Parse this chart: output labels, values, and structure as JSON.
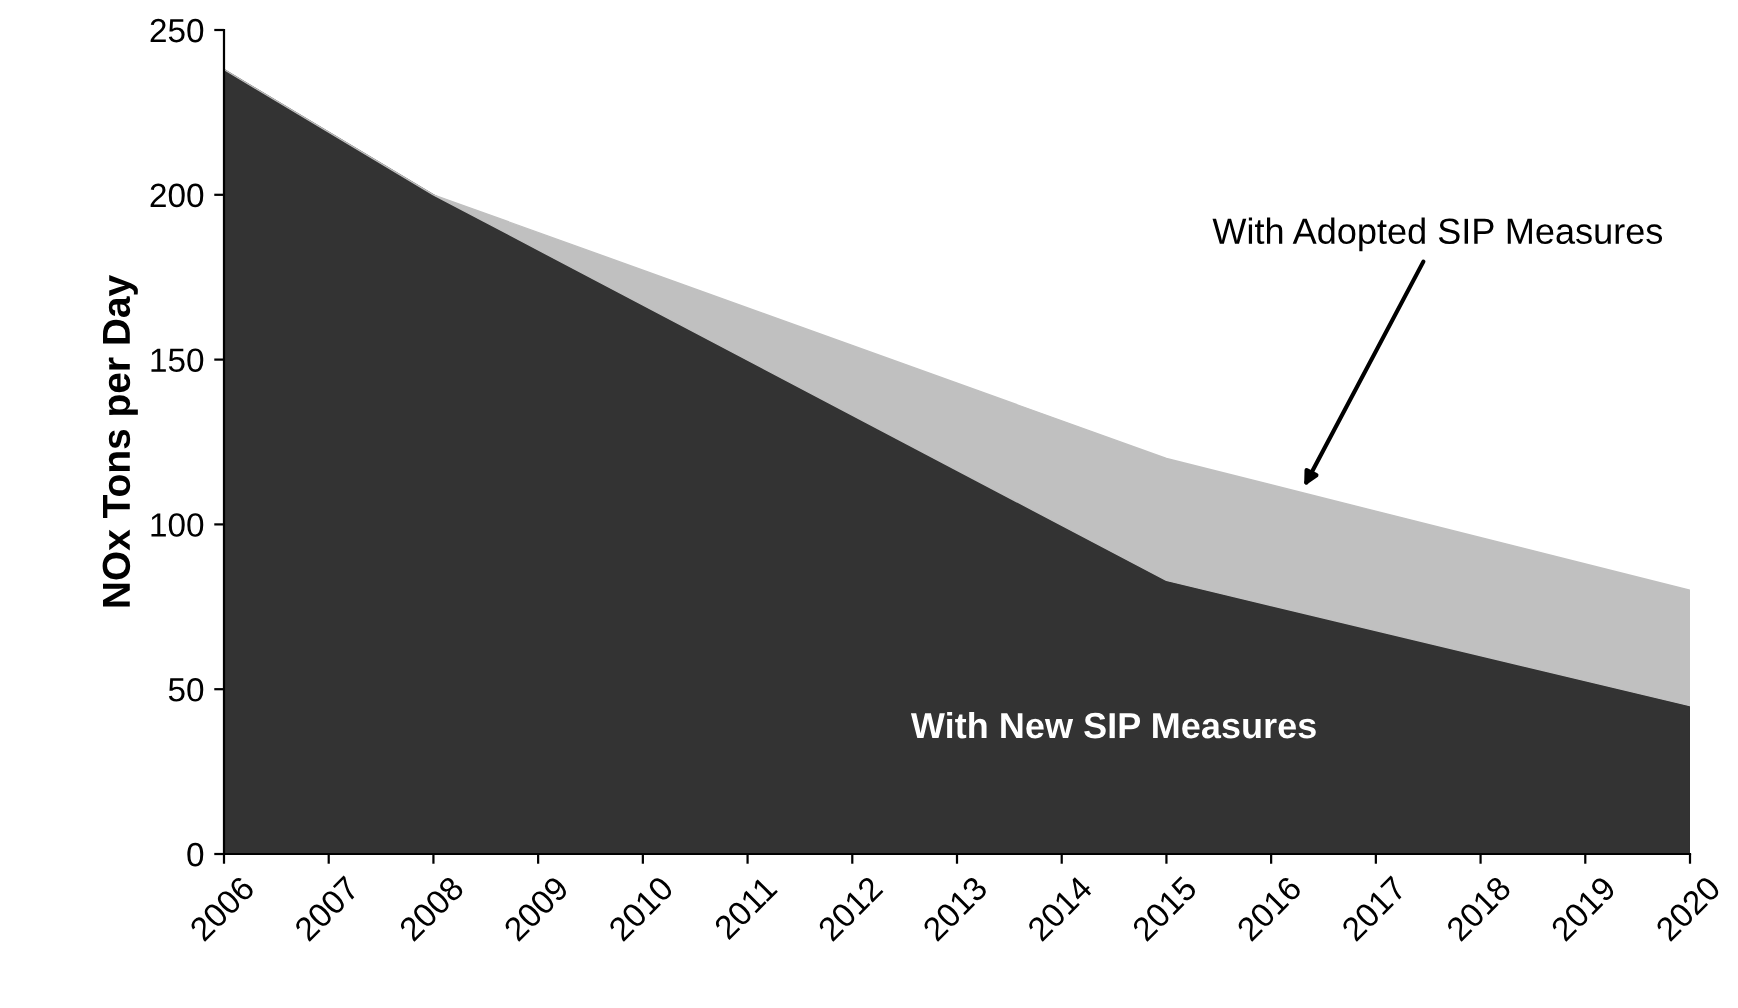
{
  "chart_data": {
    "type": "area",
    "ylabel": "NOx Tons per Day",
    "stacked": true,
    "series": [
      {
        "name": "With New SIP Measures",
        "color": "#333333",
        "x": [
          2006,
          2008,
          2015,
          2020
        ],
        "values": [
          238,
          200,
          83,
          45
        ]
      },
      {
        "color": "#c0c0c0",
        "x": [
          2006,
          2008,
          2015,
          2020
        ],
        "values": [
          0,
          0,
          37,
          35
        ]
      }
    ],
    "annotations": [
      "With Adopted SIP Measures"
    ],
    "xlim": [
      2006,
      2020
    ],
    "xticks": [
      2006,
      2007,
      2008,
      2009,
      2010,
      2011,
      2012,
      2013,
      2014,
      2015,
      2016,
      2017,
      2018,
      2019,
      2020
    ],
    "ylim": [
      0,
      250
    ],
    "yticks": [
      0,
      50,
      100,
      150,
      200,
      250
    ],
    "grid": false,
    "legend": false
  }
}
